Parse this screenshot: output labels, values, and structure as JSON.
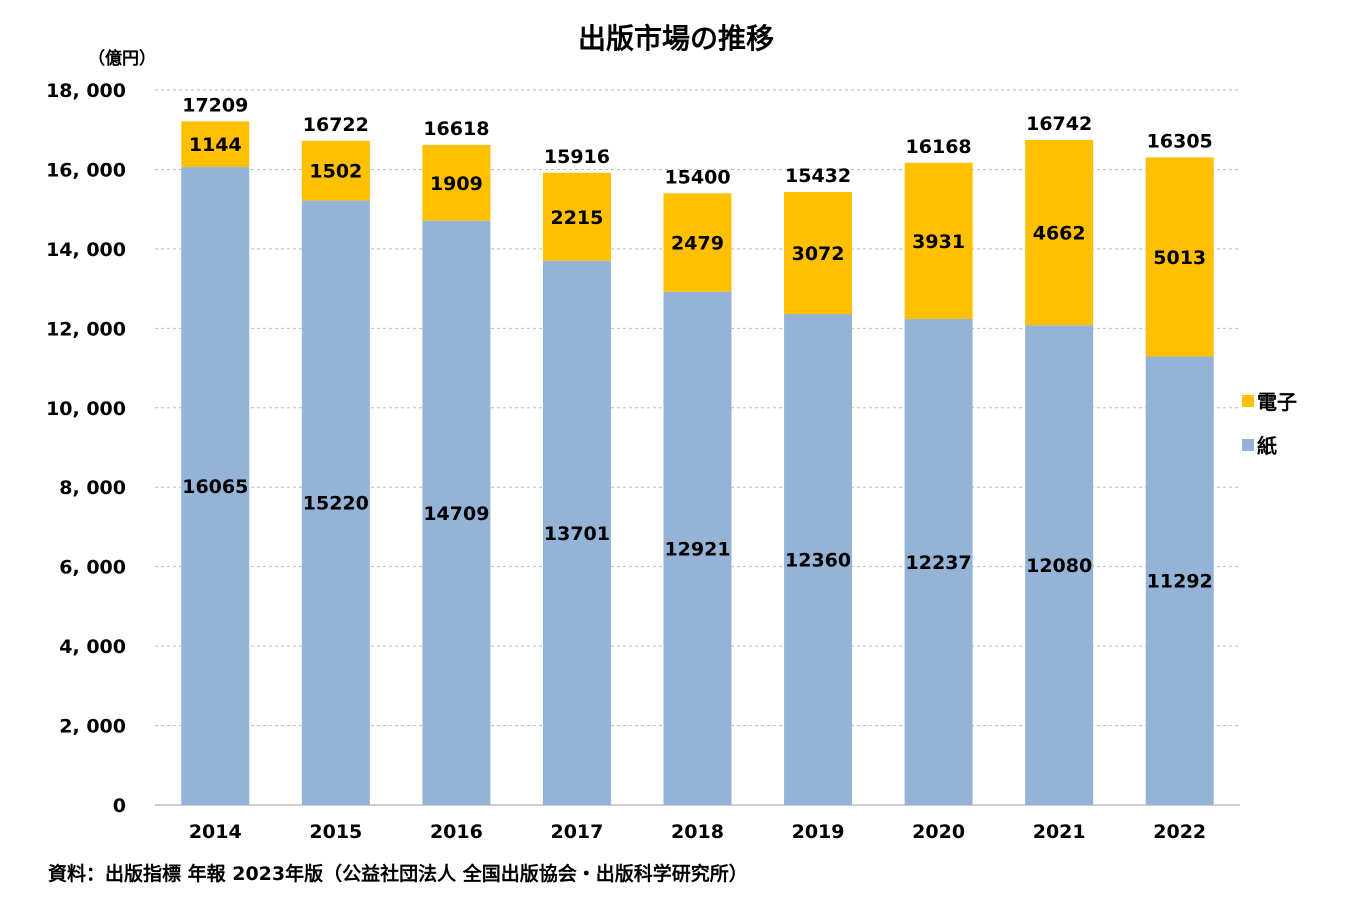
{
  "chart_data": {
    "type": "bar",
    "stacked": true,
    "title": "出版市場の推移",
    "unit_label": "（億円）",
    "categories": [
      "2014",
      "2015",
      "2016",
      "2017",
      "2018",
      "2019",
      "2020",
      "2021",
      "2022"
    ],
    "series": [
      {
        "name": "紙",
        "color": "#95b3d7",
        "values": [
          16065,
          15220,
          14709,
          13701,
          12921,
          12360,
          12237,
          12080,
          11292
        ]
      },
      {
        "name": "電子",
        "color": "#ffc000",
        "values": [
          1144,
          1502,
          1909,
          2215,
          2479,
          3072,
          3931,
          4662,
          5013
        ]
      }
    ],
    "totals": [
      17209,
      16722,
      16618,
      15916,
      15400,
      15432,
      16168,
      16742,
      16305
    ],
    "y_ticks": [
      "0",
      "2, 000",
      "4, 000",
      "6, 000",
      "8, 000",
      "10, 000",
      "12, 000",
      "14, 000",
      "16, 000",
      "18, 000"
    ],
    "ylim": [
      0,
      18000
    ],
    "grid": true,
    "legend_position": "right",
    "legend": [
      "電子",
      "紙"
    ],
    "source": "資料：出版指標 年報 2023年版（公益社団法人 全国出版協会・出版科学研究所）"
  }
}
